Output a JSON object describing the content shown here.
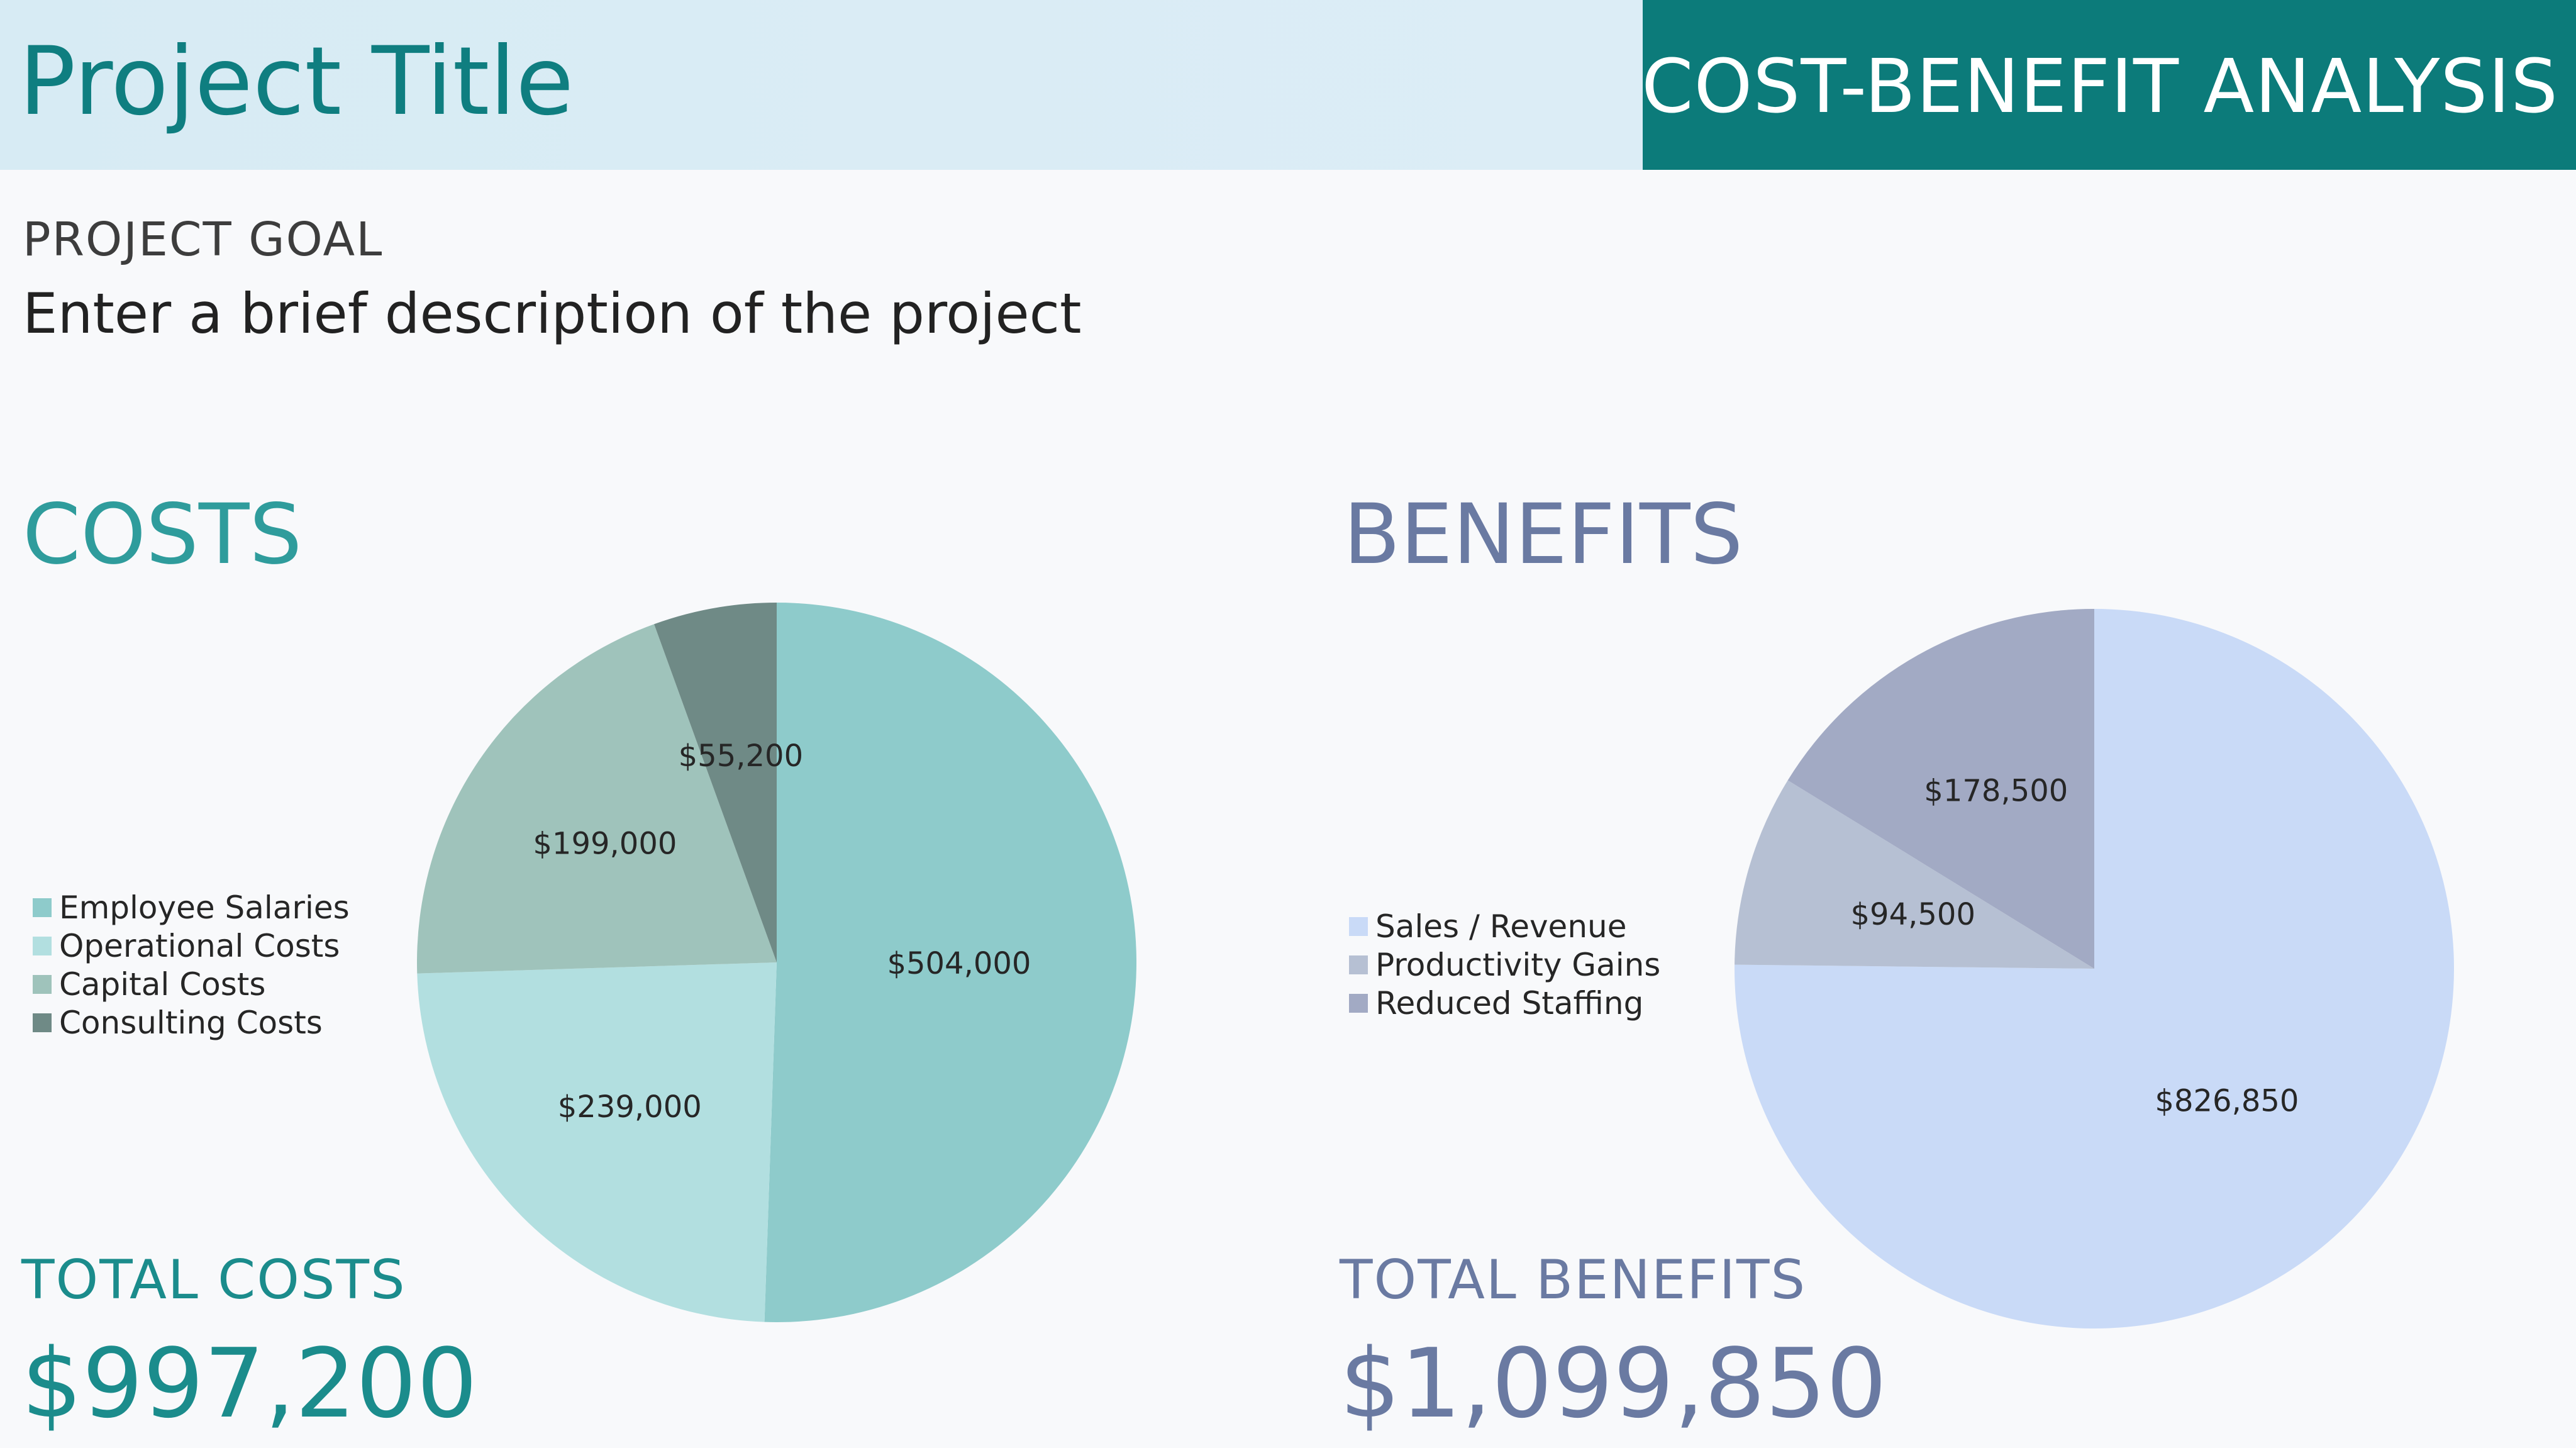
{
  "header": {
    "project_title": "Project Title",
    "analysis_title": "COST-BENEFIT ANALYSIS"
  },
  "goal": {
    "label": "PROJECT GOAL",
    "text": "Enter a brief description of the project"
  },
  "colors": {
    "brand_teal": "#0c7b7a",
    "costs_accent": "#2f9c9c",
    "benefits_accent": "#6a7aa2"
  },
  "costs": {
    "title": "COSTS",
    "total_label": "TOTAL COSTS",
    "total_value": "$997,200"
  },
  "benefits": {
    "title": "BENEFITS",
    "total_label": "TOTAL BENEFITS",
    "total_value": "$1,099,850"
  },
  "chart_data": [
    {
      "type": "pie",
      "title": "",
      "legend_position": "left",
      "slices": [
        {
          "name": "Employee Salaries",
          "value": 504000,
          "label": "$504,000",
          "color": "#8ecbcb"
        },
        {
          "name": "Operational Costs",
          "value": 239000,
          "label": "$239,000",
          "color": "#b2dfe0"
        },
        {
          "name": "Capital Costs",
          "value": 199000,
          "label": "$199,000",
          "color": "#9fc3bb"
        },
        {
          "name": "Consulting Costs",
          "value": 55200,
          "label": "$55,200",
          "color": "#6f8a86"
        }
      ]
    },
    {
      "type": "pie",
      "title": "",
      "legend_position": "left",
      "slices": [
        {
          "name": "Sales / Revenue",
          "value": 826850,
          "label": "$826,850",
          "color": "#c9daf7"
        },
        {
          "name": "Productivity Gains",
          "value": 94500,
          "label": "$94,500",
          "color": "#b6c0d3"
        },
        {
          "name": "Reduced Staffing",
          "value": 178500,
          "label": "$178,500",
          "color": "#a2aac4"
        }
      ]
    }
  ]
}
